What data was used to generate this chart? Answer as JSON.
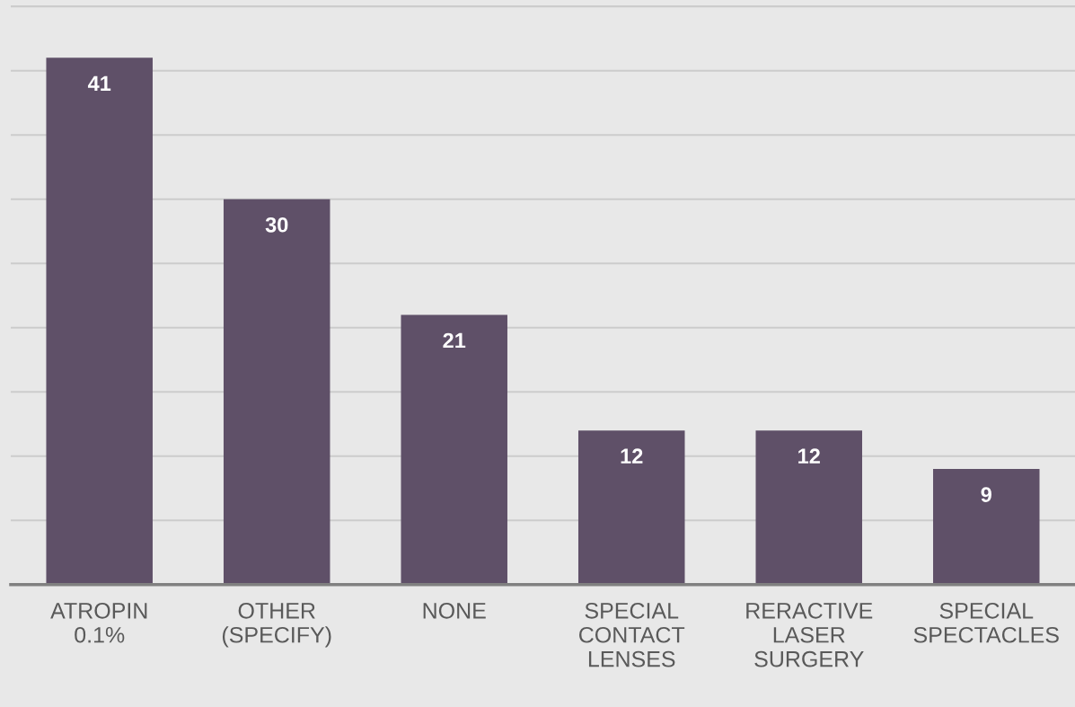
{
  "chart_data": {
    "type": "bar",
    "categories": [
      "ATROPIN 0.1%",
      "OTHER (SPECIFY)",
      "NONE",
      "SPECIAL CONTACT LENSES",
      "RERACTIVE LASER SURGERY",
      "SPECIAL SPECTACLES"
    ],
    "values": [
      41,
      30,
      21,
      12,
      12,
      9
    ],
    "color": "#5f5068",
    "ylim": [
      0,
      45.5
    ],
    "yticks": [
      {
        "value": 0,
        "label": null
      },
      {
        "value": 5,
        "label": null
      },
      {
        "value": 10,
        "label": null
      },
      {
        "value": 15,
        "label": null
      },
      {
        "value": 20,
        "label": null
      },
      {
        "value": 25,
        "label": null
      },
      {
        "value": 30,
        "label": null
      },
      {
        "value": 35,
        "label": null
      },
      {
        "value": 40,
        "label": null
      },
      {
        "value": 45,
        "label": null
      }
    ],
    "tick_labels": "x",
    "grid": "y",
    "data_labels": true
  }
}
